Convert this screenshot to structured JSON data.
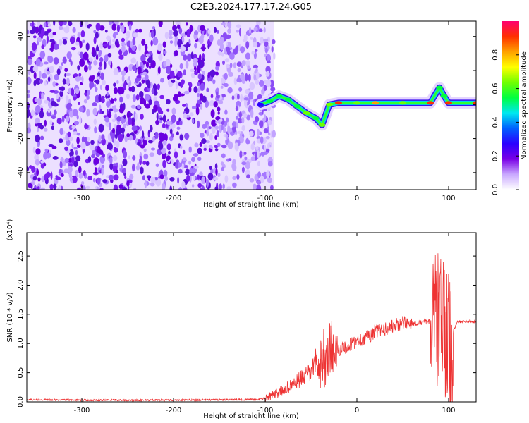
{
  "title": "C2E3.2024.177.17.24.G05",
  "chart_data": [
    {
      "type": "heatmap",
      "xlabel": "Height of straight line (km)",
      "ylabel": "Frequency (Hz)",
      "xlim": [
        -360,
        130
      ],
      "ylim": [
        -50,
        49
      ],
      "xticks": [
        -300,
        -200,
        -100,
        0,
        100
      ],
      "yticks": [
        -40,
        -20,
        0,
        20,
        40
      ],
      "colorbar": {
        "label": "Normalized spectral amplitude",
        "range": [
          0,
          1
        ],
        "ticks": [
          0.0,
          0.2,
          0.4,
          0.6,
          0.8
        ],
        "tick_labels": [
          "0.0",
          "0.2",
          "0.4",
          "0.6",
          "0.8"
        ],
        "colors": [
          "#ffffff",
          "#c9a8ff",
          "#7a00e6",
          "#2a00ff",
          "#0060ff",
          "#00e8f0",
          "#00ff40",
          "#70ff00",
          "#ffff00",
          "#ffa000",
          "#ff3000",
          "#ff0070"
        ]
      },
      "noise_region_x": [
        -360,
        -90
      ],
      "ridge": {
        "x": [
          -105,
          -95,
          -85,
          -75,
          -65,
          -55,
          -45,
          -38,
          -30,
          -20,
          0,
          20,
          50,
          80,
          90,
          95,
          100,
          130
        ],
        "y": [
          0,
          2,
          5,
          3,
          -1,
          -5,
          -8,
          -12,
          0,
          1,
          1,
          1,
          1,
          1,
          10,
          5,
          1,
          1
        ],
        "amplitude": [
          0.3,
          0.5,
          0.5,
          0.5,
          0.5,
          0.6,
          0.5,
          0.6,
          0.6,
          0.9,
          0.6,
          0.8,
          0.6,
          0.9,
          0.5,
          0.5,
          0.9,
          0.9
        ]
      }
    },
    {
      "type": "line",
      "xlabel": "Height of straight line (km)",
      "ylabel": "SNR (10 * v/v)",
      "y_multiplier": "(x10⁴)",
      "xlim": [
        -360,
        130
      ],
      "ylim": [
        0,
        2.9
      ],
      "xticks": [
        -300,
        -200,
        -100,
        0,
        100
      ],
      "yticks": [
        0.0,
        0.5,
        1.0,
        1.5,
        2.0,
        2.5
      ],
      "ytick_labels": [
        "0.0",
        "0.5",
        "1.0",
        "1.5",
        "2.0",
        "2.5"
      ],
      "series": [
        {
          "color": "#ee3333",
          "x": [
            -360,
            -300,
            -200,
            -110,
            -100,
            -90,
            -80,
            -70,
            -60,
            -50,
            -45,
            -40,
            -35,
            -30,
            -25,
            -20,
            -10,
            0,
            10,
            20,
            30,
            40,
            50,
            60,
            70,
            80,
            85,
            90,
            95,
            100,
            105,
            110,
            130
          ],
          "y": [
            0.04,
            0.03,
            0.03,
            0.04,
            0.06,
            0.12,
            0.2,
            0.3,
            0.4,
            0.5,
            0.7,
            0.55,
            0.8,
            0.9,
            0.85,
            0.9,
            0.95,
            1.05,
            1.1,
            1.2,
            1.25,
            1.3,
            1.35,
            1.35,
            1.37,
            1.38,
            1.4,
            1.5,
            1.2,
            1.0,
            1.2,
            1.38,
            1.38
          ]
        }
      ]
    }
  ]
}
